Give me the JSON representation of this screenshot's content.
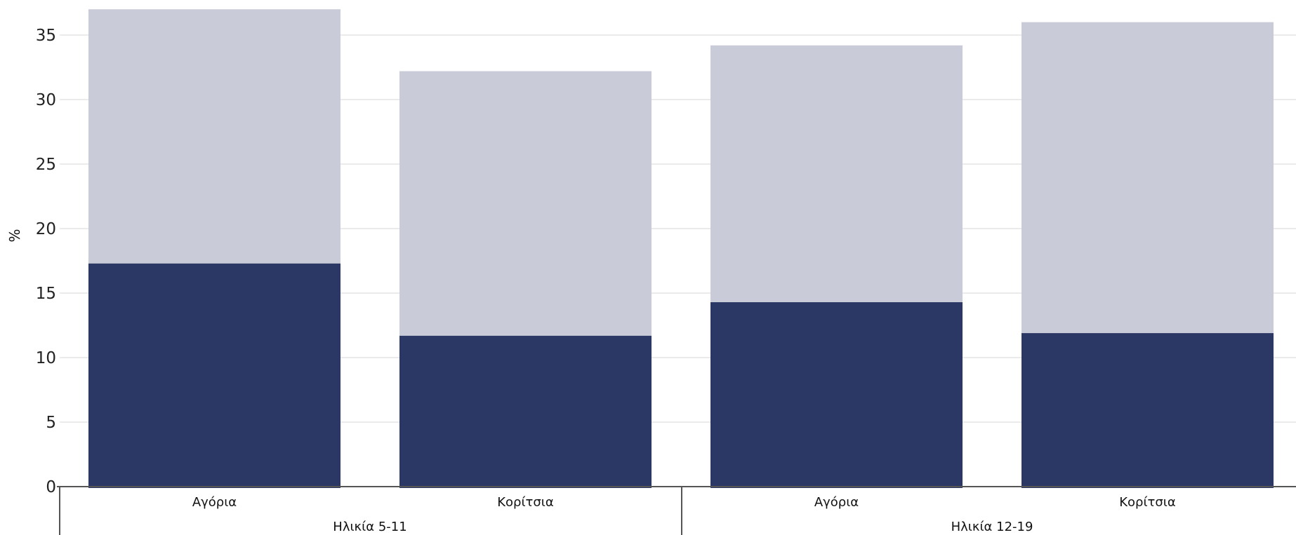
{
  "chart_data": {
    "type": "bar",
    "stacked": true,
    "title": "",
    "xlabel": "",
    "ylabel": "%",
    "ylim": [
      0,
      37
    ],
    "yticks": [
      0,
      5,
      10,
      15,
      20,
      25,
      30,
      35
    ],
    "grid": true,
    "legend": "none",
    "categories": [
      "Αγόρια",
      "Κορίτσια",
      "Αγόρια",
      "Κορίτσια"
    ],
    "groups": [
      {
        "label": "Ηλικία 5-11",
        "categories": [
          "Αγόρια",
          "Κορίτσια"
        ]
      },
      {
        "label": "Ηλικία 12-19",
        "categories": [
          "Αγόρια",
          "Κορίτσια"
        ]
      }
    ],
    "series": [
      {
        "color": "#2b3765",
        "values": [
          17.3,
          11.7,
          14.3,
          11.9
        ]
      },
      {
        "color": "#c9ccd8",
        "values": [
          19.7,
          20.5,
          19.9,
          24.1
        ]
      }
    ],
    "colors": {
      "gridline": "#ebebeb",
      "axis": "#555555"
    }
  }
}
